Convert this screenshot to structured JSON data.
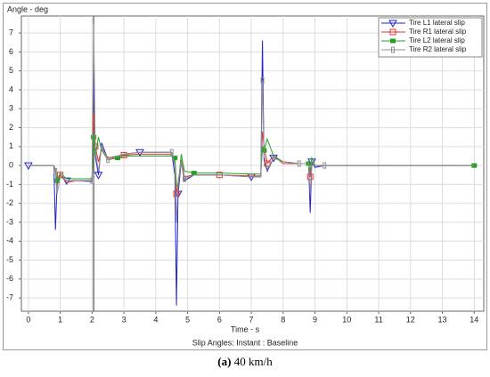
{
  "chart_data": {
    "type": "line",
    "title": "Angle - deg",
    "x_label": "Time - s",
    "subtitle": "Slip Angles: Instant : Baseline",
    "caption_label": "(a)",
    "caption": "40 km/h",
    "x": [
      0,
      0.8,
      0.85,
      0.9,
      1.0,
      1.2,
      1.5,
      2.0,
      2.05,
      2.1,
      2.2,
      2.3,
      2.5,
      2.8,
      3.0,
      3.5,
      4.0,
      4.5,
      4.6,
      4.65,
      4.7,
      4.8,
      4.9,
      5.2,
      6.0,
      7.0,
      7.3,
      7.35,
      7.4,
      7.5,
      7.7,
      8.0,
      8.5,
      8.8,
      8.85,
      8.9,
      9.0,
      9.3,
      14
    ],
    "series": [
      {
        "name": "Tire L1 lateral slip",
        "color": "#2222cc",
        "marker": "triangle",
        "values": [
          0,
          0,
          -3.4,
          -1.0,
          -0.6,
          -0.8,
          -0.8,
          -0.85,
          5.4,
          0.5,
          -0.5,
          1.2,
          0.3,
          0.5,
          0.6,
          0.7,
          0.7,
          0.7,
          -0.5,
          -7.4,
          -1.5,
          0.2,
          -0.8,
          -0.5,
          -0.5,
          -0.6,
          -0.6,
          6.6,
          0.3,
          -0.3,
          0.4,
          0.2,
          0.1,
          0.1,
          -2.5,
          0.2,
          -0.1,
          0,
          0
        ]
      },
      {
        "name": "Tire R1 lateral slip",
        "color": "#e03030",
        "marker": "square",
        "values": [
          0,
          0,
          -0.3,
          -1.0,
          -0.5,
          -0.9,
          -0.8,
          -0.8,
          2.8,
          1.0,
          0.2,
          0.9,
          0.4,
          0.5,
          0.55,
          0.6,
          0.6,
          0.6,
          0.2,
          -1.5,
          -0.9,
          0.3,
          -0.6,
          -0.5,
          -0.5,
          -0.55,
          -0.55,
          1.8,
          1.0,
          0.1,
          0.5,
          0.1,
          0.1,
          0.1,
          -0.6,
          0.2,
          0,
          0,
          0
        ]
      },
      {
        "name": "Tire L2 lateral slip",
        "color": "#22a022",
        "marker": "filled-square",
        "values": [
          0,
          0,
          -0.2,
          -0.8,
          -0.4,
          -0.7,
          -0.7,
          -0.7,
          1.5,
          0.5,
          1.5,
          0.8,
          0.3,
          0.4,
          0.5,
          0.5,
          0.5,
          0.5,
          0.4,
          -1.0,
          -1.2,
          0.6,
          -0.3,
          -0.4,
          -0.4,
          -0.45,
          -0.45,
          1.0,
          0.8,
          1.4,
          0.5,
          0.2,
          0.1,
          0.1,
          -0.3,
          0.4,
          0,
          0,
          0
        ]
      },
      {
        "name": "Tire R2 lateral slip",
        "color": "#909090",
        "marker": "bar",
        "values": [
          0,
          0,
          -0.3,
          -1.5,
          -0.6,
          -0.8,
          -0.8,
          -0.8,
          7.5,
          0.8,
          -0.3,
          1.0,
          0.3,
          0.5,
          0.6,
          0.7,
          0.7,
          0.7,
          0,
          -3.0,
          -1.0,
          0.2,
          -0.7,
          -0.5,
          -0.5,
          -0.6,
          -0.6,
          4.5,
          0.5,
          -0.2,
          0.4,
          0.2,
          0.1,
          0.1,
          -1.5,
          0.2,
          0,
          0,
          0
        ]
      }
    ],
    "cursor_x": 2.05,
    "xlim": [
      -0.22,
      14.3
    ],
    "xticks": [
      0,
      1,
      2,
      3,
      4,
      5,
      6,
      7,
      8,
      9,
      10,
      11,
      12,
      13,
      14
    ],
    "ylim": [
      -7.7,
      7.9
    ],
    "yticks": [
      -7,
      -6,
      -5,
      -4,
      -3,
      -2,
      -1,
      0,
      1,
      2,
      3,
      4,
      5,
      6,
      7
    ],
    "grid": true,
    "legend": "top-right"
  }
}
